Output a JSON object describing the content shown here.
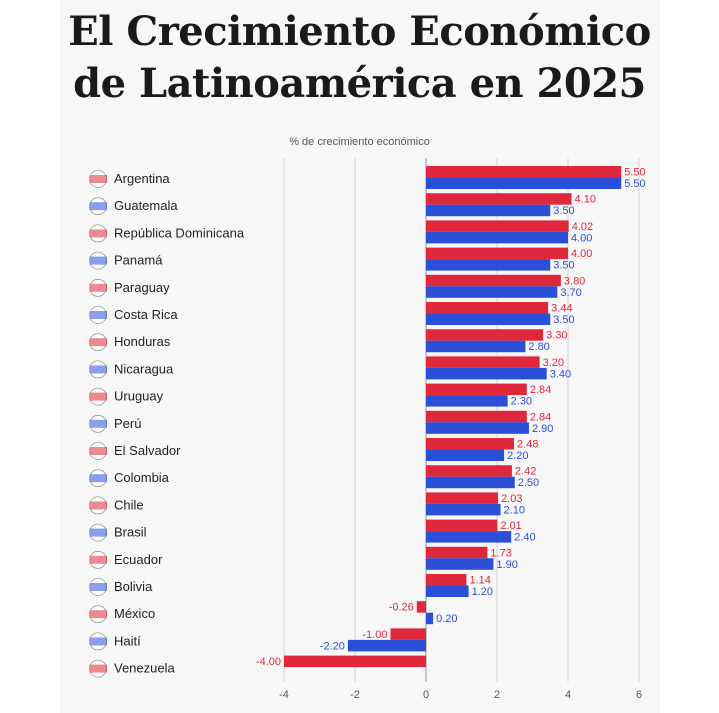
{
  "title_line1": "El Crecimiento Económico",
  "title_line2": "de Latinoamérica en 2025",
  "chart_data": {
    "type": "bar",
    "orientation": "horizontal",
    "subtitle": "% de crecimiento económico",
    "categories": [
      "Argentina",
      "Guatemala",
      "República Dominicana",
      "Panamá",
      "Paraguay",
      "Costa Rica",
      "Honduras",
      "Nicaragua",
      "Uruguay",
      "Perú",
      "El Salvador",
      "Colombia",
      "Chile",
      "Brasil",
      "Ecuador",
      "Bolivia",
      "México",
      "Haití",
      "Venezuela"
    ],
    "series": [
      {
        "color": "#e0283c",
        "values": [
          5.5,
          4.1,
          4.02,
          4.0,
          3.8,
          3.44,
          3.3,
          3.2,
          2.84,
          2.84,
          2.48,
          2.42,
          2.03,
          2.01,
          1.73,
          1.14,
          -0.26,
          -1.0,
          -4.0
        ]
      },
      {
        "color": "#2b4fd6",
        "values": [
          5.5,
          3.5,
          4.0,
          3.5,
          3.7,
          3.5,
          2.8,
          3.4,
          2.3,
          2.9,
          2.2,
          2.5,
          2.1,
          2.4,
          1.9,
          1.2,
          0.2,
          -2.2,
          null
        ]
      }
    ],
    "value_labels": [
      [
        "5.50",
        "4.10",
        "4.02",
        "4.00",
        "3.80",
        "3.44",
        "3.30",
        "3.20",
        "2.84",
        "2.84",
        "2.48",
        "2.42",
        "2.03",
        "2.01",
        "1.73",
        "1.14",
        "-0.26",
        "-1.00",
        "-4.00"
      ],
      [
        "5.50",
        "3.50",
        "4.00",
        "3.50",
        "3.70",
        "3.50",
        "2.80",
        "3.40",
        "2.30",
        "2.90",
        "2.20",
        "2.50",
        "2.10",
        "2.40",
        "1.90",
        "1.20",
        "0.20",
        "-2.20",
        ""
      ]
    ],
    "xticks": [
      -4,
      -2,
      0,
      2,
      4,
      6
    ],
    "xlim": [
      -4.5,
      6.2
    ],
    "grid": true
  }
}
